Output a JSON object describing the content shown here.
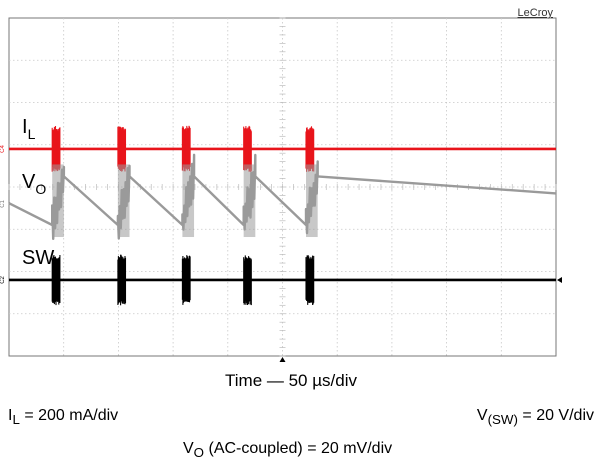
{
  "brand": "LeCroy",
  "chart_data": {
    "type": "oscilloscope-capture",
    "grid": true,
    "divisions": {
      "horizontal": 10,
      "vertical": 8
    },
    "time_per_div_us": 50,
    "bursts_center_time_us": [
      43,
      103,
      162,
      218,
      275
    ],
    "burst_width_us": 7,
    "channels": [
      {
        "label": "I",
        "label_sub": "L",
        "marker": "C4",
        "color": "#e8141b",
        "scale": "200 mA/div",
        "center_div": 3.1,
        "burst_half_height_div": 0.55
      },
      {
        "label": "V",
        "label_sub": "O",
        "marker": "C1",
        "color": "#9a9a9a",
        "scale": "20 mV/div",
        "coupling": "AC-coupled",
        "center_div": 4.4,
        "ramp_peak_div": 3.75,
        "ramp_valley_div": 4.9
      },
      {
        "label": "SW",
        "label_sub": "",
        "marker": "C2",
        "color": "#000000",
        "scale": "20 V/div",
        "center_div": 6.2,
        "burst_half_height_div": 0.6
      }
    ],
    "xlabel": "Time — 50 µs/div",
    "annotations": {
      "il_scale": {
        "main": "I",
        "sub": "L",
        "rest": " = 200 mA/div"
      },
      "vsw_scale": {
        "main": "V",
        "sub": "(SW)",
        "rest": " = 20 V/div"
      },
      "vo_scale": {
        "main": "V",
        "sub": "O",
        "rest": " (AC-coupled) = 20 mV/div"
      }
    }
  }
}
